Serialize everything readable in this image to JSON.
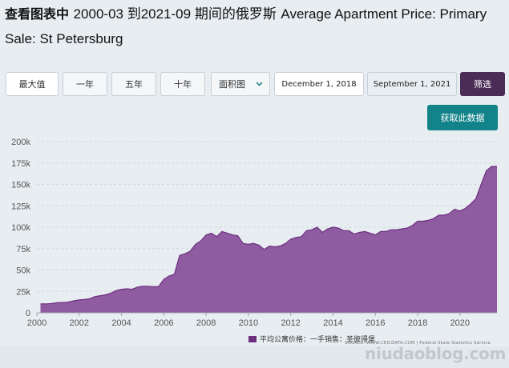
{
  "header": {
    "title_cn": "查看图表中",
    "title_range": "2000-03 到2021-09 期间的俄罗斯",
    "title_en": "Average Apartment Price: Primary Sale: St Petersburg"
  },
  "controls": {
    "max_label": "最大值",
    "one_year_label": "一年",
    "five_year_label": "五年",
    "ten_year_label": "十年",
    "chart_type_label": "面积图",
    "start_date": "December 1, 2018",
    "end_date": "September 1, 2021",
    "filter_label": "筛选",
    "get_data_label": "获取此数据"
  },
  "legend": {
    "label": "平均公寓价格：一手销售：圣彼得堡"
  },
  "source": "SOURCE: WWW.CEICDATA.COM | Federal State Statistics Service",
  "watermark": "niudaoblog.com",
  "colors": {
    "fill": "#7b3a8f",
    "stroke": "#6b2f7e",
    "filter_btn": "#4a2c57",
    "get_btn": "#13838a"
  },
  "chart_data": {
    "type": "area",
    "xlim": [
      2000,
      2021.75
    ],
    "ylim": [
      0,
      200000
    ],
    "xticks": [
      "2000",
      "2002",
      "2004",
      "2006",
      "2008",
      "2010",
      "2012",
      "2014",
      "2016",
      "2018",
      "2020"
    ],
    "yticks": [
      "0",
      "25k",
      "50k",
      "75k",
      "100k",
      "125k",
      "150k",
      "175k",
      "200k"
    ],
    "grid": true,
    "series": [
      {
        "name": "平均公寓价格：一手销售：圣彼得堡",
        "x": [
          2000.17,
          2000.5,
          2000.75,
          2001.0,
          2001.25,
          2001.5,
          2001.75,
          2002.0,
          2002.25,
          2002.5,
          2002.75,
          2003.0,
          2003.25,
          2003.5,
          2003.75,
          2004.0,
          2004.25,
          2004.5,
          2004.75,
          2005.0,
          2005.25,
          2005.5,
          2005.75,
          2006.0,
          2006.25,
          2006.5,
          2006.75,
          2007.0,
          2007.25,
          2007.5,
          2007.75,
          2008.0,
          2008.25,
          2008.5,
          2008.75,
          2009.0,
          2009.25,
          2009.5,
          2009.75,
          2010.0,
          2010.25,
          2010.5,
          2010.75,
          2011.0,
          2011.25,
          2011.5,
          2011.75,
          2012.0,
          2012.25,
          2012.5,
          2012.75,
          2013.0,
          2013.25,
          2013.5,
          2013.75,
          2014.0,
          2014.25,
          2014.5,
          2014.75,
          2015.0,
          2015.25,
          2015.5,
          2015.75,
          2016.0,
          2016.25,
          2016.5,
          2016.75,
          2017.0,
          2017.25,
          2017.5,
          2017.75,
          2018.0,
          2018.25,
          2018.5,
          2018.75,
          2019.0,
          2019.25,
          2019.5,
          2019.75,
          2020.0,
          2020.25,
          2020.5,
          2020.75,
          2021.0,
          2021.25,
          2021.5,
          2021.75
        ],
        "values": [
          10500,
          10500,
          11000,
          12000,
          12000,
          12500,
          14000,
          15000,
          15500,
          16500,
          19000,
          20000,
          21000,
          23000,
          26000,
          27500,
          28000,
          27500,
          30000,
          31000,
          31000,
          30500,
          30500,
          39000,
          43000,
          45000,
          67000,
          69000,
          72000,
          80000,
          84000,
          91000,
          93000,
          89000,
          95000,
          93000,
          91000,
          90000,
          81000,
          80000,
          81000,
          79000,
          74000,
          78000,
          77000,
          78000,
          81000,
          86000,
          88000,
          89000,
          96000,
          97000,
          100000,
          94000,
          98000,
          100000,
          99000,
          96000,
          96000,
          92000,
          94000,
          95000,
          93000,
          91000,
          95000,
          95000,
          97000,
          97000,
          98000,
          99000,
          102000,
          107000,
          107000,
          108000,
          110000,
          114000,
          114000,
          116000,
          121000,
          119000,
          122000,
          127000,
          133000,
          150000,
          166000,
          171000,
          171000
        ]
      }
    ]
  }
}
